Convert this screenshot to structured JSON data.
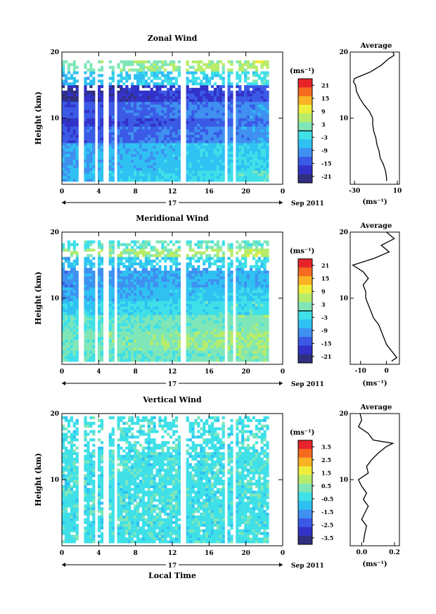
{
  "colors": {
    "zonal_meridional_scale": [
      "#30307f",
      "#3232c8",
      "#3a5ae6",
      "#3f90f0",
      "#2fc1f2",
      "#3fe0e8",
      "#7fe6b8",
      "#b6ec6a",
      "#eeee3c",
      "#f9b224",
      "#f56a1f",
      "#e8232a"
    ],
    "vertical_scale": [
      "#30307f",
      "#3232c8",
      "#3a5ae6",
      "#3f90f0",
      "#2fc1f2",
      "#3fe0e8",
      "#7fe6b8",
      "#b6ec6a",
      "#eeee3c",
      "#f9b224",
      "#f56a1f",
      "#e8232a"
    ]
  },
  "chart_data": [
    {
      "type": "heatmap",
      "title": "Zonal Wind",
      "ylabel": "Height (km)",
      "xlabel": "",
      "xlim": [
        0,
        24
      ],
      "ylim": [
        0,
        20
      ],
      "x_ticks": [
        "0",
        "4",
        "8",
        "12",
        "16",
        "20",
        "0"
      ],
      "y_ticks": [
        "10",
        "20"
      ],
      "date_label": "17",
      "month_label": "Sep 2011",
      "colorbar": {
        "unit": "(ms⁻¹)",
        "ticks": [
          "21",
          "15",
          "9",
          "3",
          "-3",
          "-9",
          "-15",
          "-21"
        ],
        "zero_line": 0
      },
      "bands": [
        {
          "from": 0,
          "to": 2,
          "value": -4
        },
        {
          "from": 2,
          "to": 6,
          "value": -6
        },
        {
          "from": 6,
          "to": 8.5,
          "value": -12
        },
        {
          "from": 8.5,
          "to": 10,
          "value": -15
        },
        {
          "from": 10,
          "to": 12.5,
          "value": -12
        },
        {
          "from": 12.5,
          "to": 15,
          "value": -17
        },
        {
          "from": 15,
          "to": 16.8,
          "value": -4
        },
        {
          "from": 16.8,
          "to": 18.5,
          "value": 4
        }
      ],
      "gaps_hours": [
        [
          1.6,
          2.3
        ],
        [
          3.6,
          3.9
        ],
        [
          4.5,
          4.9
        ],
        [
          5.6,
          5.9
        ],
        [
          12.9,
          13.5
        ],
        [
          17.6,
          17.9
        ],
        [
          18.4,
          18.7
        ]
      ],
      "profile": {
        "title": "Average",
        "xlabel": "(ms⁻¹)",
        "x_ticks": [
          "-30",
          "10"
        ],
        "xlim": [
          -34,
          12
        ],
        "y_ticks": [
          "10",
          "20"
        ],
        "heights": [
          0.5,
          1,
          2,
          3,
          4,
          5,
          6,
          7,
          8,
          9,
          10,
          11,
          12,
          13,
          14,
          15,
          15.5,
          16,
          17,
          18,
          19,
          19.5,
          20
        ],
        "values": [
          0,
          0,
          -1,
          -3,
          -6,
          -7,
          -9,
          -10,
          -12,
          -13,
          -13,
          -16,
          -21,
          -25,
          -28,
          -29,
          -31,
          -30,
          -15,
          -5,
          2,
          7,
          6
        ]
      }
    },
    {
      "type": "heatmap",
      "title": "Meridional Wind",
      "ylabel": "Height (km)",
      "xlabel": "",
      "xlim": [
        0,
        24
      ],
      "ylim": [
        0,
        20
      ],
      "x_ticks": [
        "0",
        "4",
        "8",
        "12",
        "16",
        "20",
        "0"
      ],
      "y_ticks": [
        "10",
        "20"
      ],
      "date_label": "17",
      "month_label": "Sep 2011",
      "colorbar": {
        "unit": "(ms⁻¹)",
        "ticks": [
          "21",
          "15",
          "9",
          "3",
          "-3",
          "-9",
          "-15",
          "-21"
        ],
        "zero_line": 0
      },
      "bands": [
        {
          "from": 0,
          "to": 2,
          "value": 1
        },
        {
          "from": 2,
          "to": 5,
          "value": 3
        },
        {
          "from": 5,
          "to": 7.5,
          "value": 1
        },
        {
          "from": 7.5,
          "to": 9.5,
          "value": -3
        },
        {
          "from": 9.5,
          "to": 11.5,
          "value": -6
        },
        {
          "from": 11.5,
          "to": 14.5,
          "value": -8
        },
        {
          "from": 14.5,
          "to": 16,
          "value": -4
        },
        {
          "from": 16,
          "to": 17.5,
          "value": 5
        }
      ],
      "gaps_hours": [
        [
          1.6,
          2.3
        ],
        [
          3.6,
          3.9
        ],
        [
          4.5,
          4.9
        ],
        [
          5.6,
          5.9
        ],
        [
          12.9,
          13.5
        ],
        [
          17.6,
          17.9
        ],
        [
          18.4,
          18.7
        ]
      ],
      "profile": {
        "title": "Average",
        "xlabel": "(ms⁻¹)",
        "x_ticks": [
          "-10",
          "0"
        ],
        "xlim": [
          -14,
          5
        ],
        "y_ticks": [
          "10",
          "20"
        ],
        "heights": [
          0.5,
          1,
          2,
          3,
          4,
          5,
          6,
          7,
          8,
          9,
          10,
          11,
          12,
          13,
          14,
          15,
          16,
          17,
          18,
          19,
          20
        ],
        "values": [
          2,
          4,
          2,
          0,
          -1,
          -2,
          -3,
          -5,
          -6,
          -7,
          -8,
          -8,
          -9,
          -7,
          -9,
          -13,
          -5,
          1,
          -2,
          3,
          0
        ]
      }
    },
    {
      "type": "heatmap",
      "title": "Vertical Wind",
      "ylabel": "Height (km)",
      "xlabel": "Local Time",
      "xlim": [
        0,
        24
      ],
      "ylim": [
        0,
        20
      ],
      "x_ticks": [
        "0",
        "4",
        "8",
        "12",
        "16",
        "20",
        "0"
      ],
      "y_ticks": [
        "10",
        "20"
      ],
      "date_label": "17",
      "month_label": "Sep 2011",
      "colorbar": {
        "unit": "(ms⁻¹)",
        "ticks": [
          "3.5",
          "2.5",
          "1.5",
          "0.5",
          "-0.5",
          "-1.5",
          "-2.5",
          "-3.5"
        ],
        "zero_line": null
      },
      "bands": [
        {
          "from": 0,
          "to": 19.5,
          "value": -0.3
        }
      ],
      "gaps_hours": [
        [
          1.6,
          2.3
        ],
        [
          3.6,
          3.9
        ],
        [
          4.5,
          4.9
        ],
        [
          5.6,
          5.9
        ],
        [
          12.9,
          13.5
        ],
        [
          17.6,
          17.9
        ],
        [
          18.4,
          18.7
        ]
      ],
      "profile": {
        "title": "Average",
        "xlabel": "(ms⁻¹)",
        "x_ticks": [
          "0.0",
          "0.2"
        ],
        "xlim": [
          -0.07,
          0.23
        ],
        "y_ticks": [
          "10",
          "20"
        ],
        "heights": [
          0.5,
          2,
          3,
          4,
          5,
          6,
          7,
          8,
          9,
          10,
          11,
          12,
          13,
          14,
          15,
          15.5,
          16,
          17,
          18,
          19,
          20
        ],
        "values": [
          0.01,
          0.02,
          0.03,
          0.0,
          0.02,
          0.04,
          0.01,
          0.03,
          0.0,
          -0.02,
          0.04,
          0.03,
          0.06,
          0.1,
          0.15,
          0.19,
          0.07,
          0.04,
          -0.02,
          0.0,
          -0.01
        ]
      }
    }
  ]
}
